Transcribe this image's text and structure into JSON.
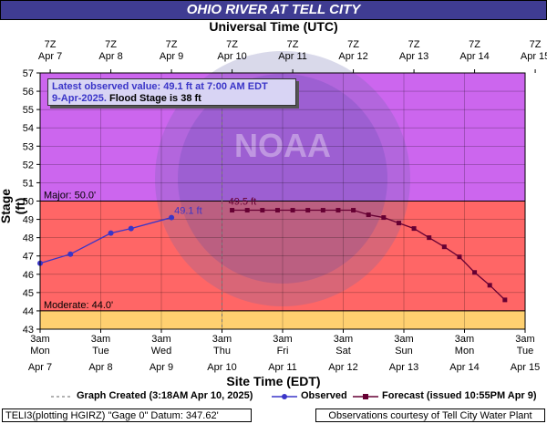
{
  "title": "OHIO RIVER AT TELL CITY",
  "top_axis_label": "Universal Time (UTC)",
  "bottom_axis_label": "Site Time (EDT)",
  "info": {
    "line1": "Latest observed value: 49.1 ft at 7:00 AM EDT",
    "line2_date": "9-Apr-2025.",
    "line2_flood": "Flood Stage is 38 ft"
  },
  "legend": {
    "created": "Graph Created (3:18AM Apr 10, 2025)",
    "observed": "Observed",
    "forecast": "Forecast (issued 10:55PM Apr 9)"
  },
  "footer": {
    "left": "TELI3(plotting HGIRZ) \"Gage 0\" Datum: 347.62'",
    "right": "Observations courtesy of Tell City Water Plant"
  },
  "watermark": "NOAA",
  "colors": {
    "title_bg": "#3f3c92",
    "major": "#cc66ee",
    "flood": "#ff6666",
    "moderate_band": "#ffd070",
    "observed": "#3a35c8",
    "forecast": "#660033"
  },
  "chart_data": {
    "type": "line",
    "title": "OHIO RIVER AT TELL CITY",
    "xlabel": "Site Time (EDT)",
    "ylabel": "Stage (ft)",
    "x_top_label": "Universal Time (UTC)",
    "ylim": [
      43,
      57
    ],
    "yticks": [
      43,
      44,
      45,
      46,
      47,
      48,
      49,
      50,
      51,
      52,
      53,
      54,
      55,
      56,
      57
    ],
    "top_ticks": [
      {
        "time": "7Z",
        "date": "Apr 7"
      },
      {
        "time": "7Z",
        "date": "Apr 8"
      },
      {
        "time": "7Z",
        "date": "Apr 9"
      },
      {
        "time": "7Z",
        "date": "Apr 10"
      },
      {
        "time": "7Z",
        "date": "Apr 11"
      },
      {
        "time": "7Z",
        "date": "Apr 12"
      },
      {
        "time": "7Z",
        "date": "Apr 13"
      },
      {
        "time": "7Z",
        "date": "Apr 14"
      },
      {
        "time": "7Z",
        "date": "Apr 15"
      }
    ],
    "bottom_ticks": [
      {
        "time": "3am",
        "day": "Mon",
        "date": "Apr 7"
      },
      {
        "time": "3am",
        "day": "Tue",
        "date": "Apr 8"
      },
      {
        "time": "3am",
        "day": "Wed",
        "date": "Apr 9"
      },
      {
        "time": "3am",
        "day": "Thu",
        "date": "Apr 10"
      },
      {
        "time": "3am",
        "day": "Fri",
        "date": "Apr 11"
      },
      {
        "time": "3am",
        "day": "Sat",
        "date": "Apr 12"
      },
      {
        "time": "3am",
        "day": "Sun",
        "date": "Apr 13"
      },
      {
        "time": "3am",
        "day": "Mon",
        "date": "Apr 14"
      },
      {
        "time": "3am",
        "day": "Tue",
        "date": "Apr 15"
      }
    ],
    "x_range_hours": [
      0,
      192
    ],
    "flood_categories": [
      {
        "name": "Major",
        "label": "Major: 50.0'",
        "value": 50.0
      },
      {
        "name": "Moderate",
        "label": "Moderate: 44.0'",
        "value": 44.0
      }
    ],
    "graph_created_hour": 72,
    "series": [
      {
        "name": "Observed",
        "x_hours": [
          0,
          12,
          28,
          36,
          52
        ],
        "y": [
          46.6,
          47.1,
          48.25,
          48.5,
          49.1
        ],
        "point_label": "49.1 ft"
      },
      {
        "name": "Forecast",
        "x_hours": [
          76,
          82,
          88,
          94,
          100,
          106,
          112,
          118,
          124,
          130,
          136,
          142,
          148,
          154,
          160,
          166,
          172,
          178,
          184
        ],
        "y": [
          49.5,
          49.5,
          49.5,
          49.5,
          49.5,
          49.5,
          49.5,
          49.5,
          49.5,
          49.25,
          49.1,
          48.8,
          48.5,
          48.0,
          47.5,
          46.95,
          46.1,
          45.4,
          44.6
        ],
        "point_label": "49.5 ft"
      }
    ]
  }
}
